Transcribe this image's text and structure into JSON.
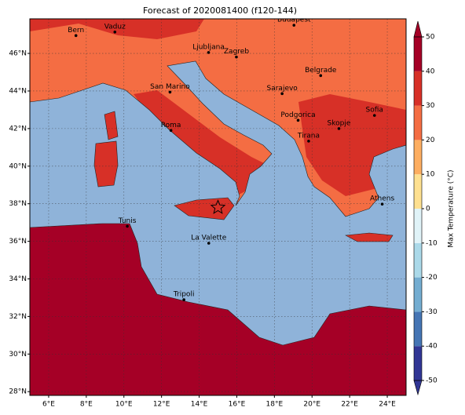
{
  "map": {
    "title": "Forecast of 2020081400 (f120-144)",
    "xlim": [
      5,
      25
    ],
    "ylim": [
      27.8,
      47.84
    ],
    "xticks": [
      {
        "value": 6,
        "label": "6°E"
      },
      {
        "value": 8,
        "label": "8°E"
      },
      {
        "value": 10,
        "label": "10°E"
      },
      {
        "value": 12,
        "label": "12°E"
      },
      {
        "value": 14,
        "label": "14°E"
      },
      {
        "value": 16,
        "label": "16°E"
      },
      {
        "value": 18,
        "label": "18°E"
      },
      {
        "value": 20,
        "label": "20°E"
      },
      {
        "value": 22,
        "label": "22°E"
      },
      {
        "value": 24,
        "label": "24°E"
      }
    ],
    "yticks": [
      {
        "value": 28,
        "label": "28°N"
      },
      {
        "value": 30,
        "label": "30°N"
      },
      {
        "value": 32,
        "label": "32°N"
      },
      {
        "value": 34,
        "label": "34°N"
      },
      {
        "value": 36,
        "label": "36°N"
      },
      {
        "value": 38,
        "label": "38°N"
      },
      {
        "value": 40,
        "label": "40°N"
      },
      {
        "value": 42,
        "label": "42°N"
      },
      {
        "value": 44,
        "label": "44°N"
      },
      {
        "value": 46,
        "label": "46°N"
      }
    ],
    "grid": true,
    "cities": [
      {
        "name": "Bern",
        "lon": 7.45,
        "lat": 46.95
      },
      {
        "name": "Vaduz",
        "lon": 9.52,
        "lat": 47.14
      },
      {
        "name": "Budapest",
        "lon": 19.04,
        "lat": 47.5
      },
      {
        "name": "Ljubljana",
        "lon": 14.5,
        "lat": 46.05
      },
      {
        "name": "Zagreb",
        "lon": 15.98,
        "lat": 45.81
      },
      {
        "name": "Belgrade",
        "lon": 20.46,
        "lat": 44.82
      },
      {
        "name": "San Marino",
        "lon": 12.45,
        "lat": 43.94
      },
      {
        "name": "Sarajevo",
        "lon": 18.41,
        "lat": 43.86
      },
      {
        "name": "Sofia",
        "lon": 23.32,
        "lat": 42.7
      },
      {
        "name": "Podgorica",
        "lon": 19.26,
        "lat": 42.44
      },
      {
        "name": "Skopje",
        "lon": 21.43,
        "lat": 42.0
      },
      {
        "name": "Roma",
        "lon": 12.5,
        "lat": 41.9
      },
      {
        "name": "Tirana",
        "lon": 19.82,
        "lat": 41.33
      },
      {
        "name": "Athens",
        "lon": 23.73,
        "lat": 37.98
      },
      {
        "name": "Tunis",
        "lon": 10.18,
        "lat": 36.8
      },
      {
        "name": "La Valette",
        "lon": 14.51,
        "lat": 35.9
      },
      {
        "name": "Tripoli",
        "lon": 13.19,
        "lat": 32.89
      }
    ],
    "marker": {
      "lon": 15.0,
      "lat": 37.8
    },
    "colorbar": {
      "label": "Max Temperature (°C)",
      "lim": [
        -50,
        50
      ],
      "ticks": [
        -50,
        -40,
        -30,
        -20,
        -10,
        0,
        10,
        20,
        30,
        40,
        50
      ],
      "colors": [
        "#313695",
        "#4575b4",
        "#74add1",
        "#abd9e9",
        "#e0f3f8",
        "#fee090",
        "#fdae61",
        "#f46d43",
        "#d73027",
        "#a50026"
      ]
    }
  }
}
